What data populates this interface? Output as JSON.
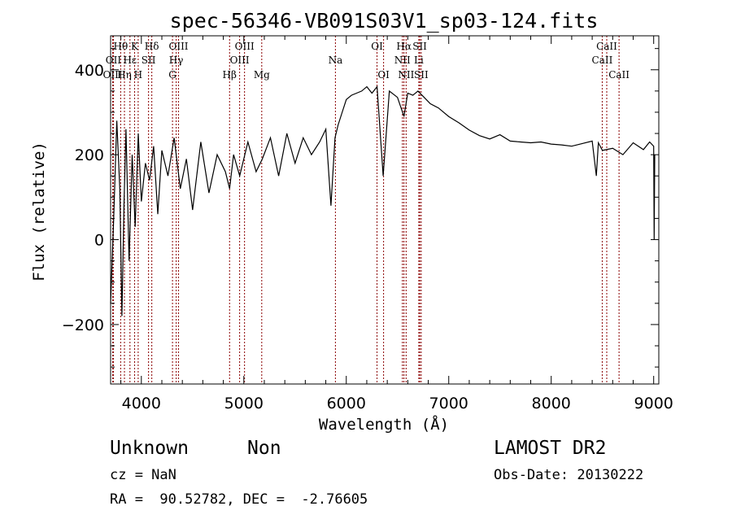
{
  "chart_data": {
    "type": "line",
    "title": "spec-56346-VB091S03V1_sp03-124.fits",
    "xlabel": "Wavelength (Å)",
    "ylabel": "Flux (relative)",
    "xlim": [
      3700,
      9050
    ],
    "ylim": [
      -340,
      480
    ],
    "xticks": [
      4000,
      5000,
      6000,
      7000,
      8000,
      9000
    ],
    "yticks": [
      -200,
      0,
      200,
      400
    ],
    "line_color": "#000000",
    "marker_color": "#8b0000",
    "spectrum": {
      "x": [
        3700,
        3730,
        3760,
        3790,
        3810,
        3830,
        3850,
        3880,
        3910,
        3940,
        3970,
        4000,
        4040,
        4080,
        4120,
        4160,
        4200,
        4260,
        4320,
        4380,
        4440,
        4500,
        4580,
        4660,
        4740,
        4820,
        4861,
        4900,
        4960,
        5040,
        5120,
        5180,
        5260,
        5340,
        5420,
        5500,
        5580,
        5660,
        5740,
        5800,
        5850,
        5890,
        5920,
        5960,
        6000,
        6050,
        6100,
        6150,
        6200,
        6250,
        6300,
        6360,
        6420,
        6500,
        6563,
        6600,
        6650,
        6700,
        6760,
        6820,
        6900,
        7000,
        7100,
        7200,
        7300,
        7400,
        7500,
        7600,
        7700,
        7800,
        7900,
        8000,
        8100,
        8200,
        8300,
        8400,
        8440,
        8460,
        8500,
        8600,
        8700,
        8800,
        8900,
        8960,
        9000,
        9005,
        9010
      ],
      "y": [
        -150,
        50,
        280,
        120,
        -180,
        80,
        260,
        -50,
        200,
        30,
        250,
        90,
        180,
        140,
        220,
        60,
        210,
        150,
        240,
        120,
        190,
        70,
        230,
        110,
        200,
        160,
        120,
        200,
        150,
        230,
        160,
        190,
        240,
        150,
        250,
        180,
        240,
        200,
        230,
        260,
        80,
        240,
        270,
        300,
        330,
        340,
        345,
        350,
        360,
        345,
        360,
        150,
        350,
        335,
        290,
        345,
        340,
        350,
        335,
        320,
        310,
        290,
        275,
        258,
        245,
        237,
        247,
        232,
        230,
        228,
        230,
        225,
        223,
        220,
        226,
        232,
        150,
        228,
        210,
        215,
        200,
        228,
        212,
        230,
        220,
        0,
        200
      ]
    },
    "lines": [
      {
        "label": "Hθ",
        "x": 3798,
        "row": 0
      },
      {
        "label": "OII",
        "x": 3727,
        "row": 1
      },
      {
        "label": "OIII",
        "x": 3720,
        "row": 2
      },
      {
        "label": "Hη",
        "x": 3835,
        "row": 2
      },
      {
        "label": "Hε",
        "x": 3889,
        "row": 1
      },
      {
        "label": "K",
        "x": 3934,
        "row": 0
      },
      {
        "label": "SII",
        "x": 4070,
        "row": 1
      },
      {
        "label": "H",
        "x": 3969,
        "row": 2
      },
      {
        "label": "Hδ",
        "x": 4102,
        "row": 0
      },
      {
        "label": "OIII",
        "x": 4363,
        "row": 0
      },
      {
        "label": "Hγ",
        "x": 4340,
        "row": 1
      },
      {
        "label": "G",
        "x": 4304,
        "row": 2
      },
      {
        "label": "Hβ",
        "x": 4861,
        "row": 2
      },
      {
        "label": "OIII",
        "x": 5007,
        "row": 0
      },
      {
        "label": "OIII",
        "x": 4959,
        "row": 1
      },
      {
        "label": "Mg",
        "x": 5175,
        "row": 2
      },
      {
        "label": "Na",
        "x": 5894,
        "row": 1
      },
      {
        "label": "OI",
        "x": 6300,
        "row": 0
      },
      {
        "label": "OI",
        "x": 6364,
        "row": 2
      },
      {
        "label": "Hα",
        "x": 6563,
        "row": 0
      },
      {
        "label": "NII",
        "x": 6548,
        "row": 1
      },
      {
        "label": "NII",
        "x": 6584,
        "row": 2
      },
      {
        "label": "SII",
        "x": 6717,
        "row": 0
      },
      {
        "label": "Li",
        "x": 6708,
        "row": 1
      },
      {
        "label": "SII",
        "x": 6731,
        "row": 2
      },
      {
        "label": "CaII",
        "x": 8542,
        "row": 0
      },
      {
        "label": "CaII",
        "x": 8498,
        "row": 1
      },
      {
        "label": "CaII",
        "x": 8662,
        "row": 2
      }
    ]
  },
  "info": {
    "classification": "Unknown",
    "subclass": "Non",
    "survey": "LAMOST DR2",
    "cz": "cz = NaN",
    "obs_date": "Obs-Date: 20130222",
    "coords": "RA =  90.52782, DEC =  -2.76605"
  }
}
